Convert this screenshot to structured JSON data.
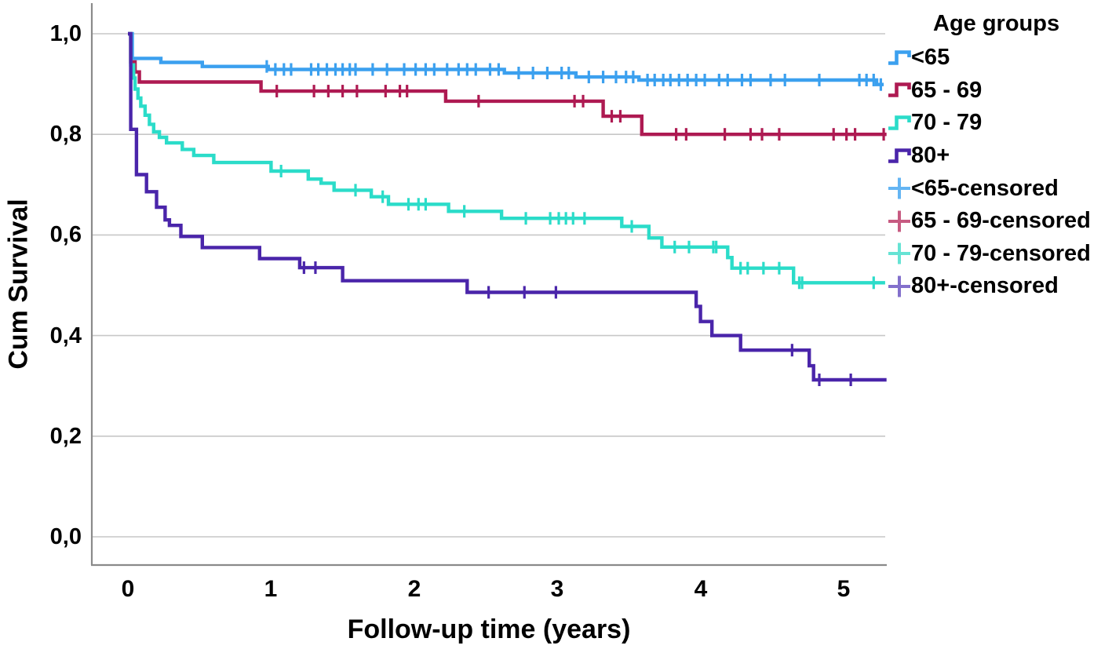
{
  "chart_data": {
    "type": "line",
    "subtype": "kaplan-meier-step",
    "title": "",
    "xlabel": "Follow-up time (years)",
    "ylabel": "Cum Survival",
    "x_axis": {
      "tick_labels": [
        "0",
        "1",
        "2",
        "3",
        "4",
        "5"
      ],
      "tick_values": [
        0,
        1,
        2,
        3,
        4,
        5
      ],
      "range_shown": [
        -0.25,
        5.3
      ]
    },
    "y_axis": {
      "tick_labels": [
        "1,0",
        "0,8",
        "0,6",
        "0,4",
        "0,2",
        "0,0"
      ],
      "tick_values": [
        1.0,
        0.8,
        0.6,
        0.4,
        0.2,
        0.0
      ],
      "range_shown": [
        0.0,
        1.05
      ],
      "decimal_separator": "comma"
    },
    "grid": "horizontal-only",
    "style": {
      "grid_color": "#c7c7c7",
      "axis_color": "#8a8a8a",
      "background": "#ffffff",
      "text_color": "#000000"
    },
    "legend": {
      "title": "Age groups",
      "position": "right",
      "items": [
        {
          "label": "<65",
          "type": "line",
          "color": "#3BA0EF"
        },
        {
          "label": "65 - 69",
          "type": "line",
          "color": "#AE1A52"
        },
        {
          "label": "70 - 79",
          "type": "line",
          "color": "#2BDCC9"
        },
        {
          "label": "80+",
          "type": "line",
          "color": "#4A25AA"
        },
        {
          "label": "<65-censored",
          "type": "censor",
          "color": "#64B5F3"
        },
        {
          "label": "65 - 69-censored",
          "type": "censor",
          "color": "#C75B82"
        },
        {
          "label": "70 - 79-censored",
          "type": "censor",
          "color": "#66E3D4"
        },
        {
          "label": "80+-censored",
          "type": "censor",
          "color": "#8370CC"
        }
      ]
    },
    "series": [
      {
        "id": "lt65",
        "name": "<65",
        "color": "#3BA0EF",
        "steps": [
          [
            0,
            1.0
          ],
          [
            0.03,
            0.951
          ],
          [
            0.23,
            0.943
          ],
          [
            0.52,
            0.935
          ],
          [
            0.98,
            0.929
          ],
          [
            2.63,
            0.922
          ],
          [
            3.13,
            0.914
          ],
          [
            3.57,
            0.908
          ],
          [
            5.23,
            0.899
          ]
        ],
        "end_time": 5.28,
        "censor_times": [
          0.97,
          1.03,
          1.09,
          1.14,
          1.28,
          1.33,
          1.39,
          1.45,
          1.5,
          1.55,
          1.59,
          1.71,
          1.81,
          1.93,
          2.01,
          2.08,
          2.14,
          2.23,
          2.31,
          2.37,
          2.43,
          2.53,
          2.59,
          2.73,
          2.83,
          2.93,
          3.03,
          3.08,
          3.22,
          3.32,
          3.41,
          3.48,
          3.53,
          3.63,
          3.68,
          3.74,
          3.79,
          3.85,
          3.91,
          3.97,
          4.03,
          4.13,
          4.19,
          4.29,
          4.35,
          4.49,
          4.59,
          4.83,
          5.11,
          5.16,
          5.21,
          5.26
        ]
      },
      {
        "id": "65-69",
        "name": "65 - 69",
        "color": "#AE1A52",
        "steps": [
          [
            0,
            1.0
          ],
          [
            0.02,
            0.944
          ],
          [
            0.05,
            0.924
          ],
          [
            0.08,
            0.904
          ],
          [
            0.93,
            0.886
          ],
          [
            2.22,
            0.866
          ],
          [
            3.32,
            0.836
          ],
          [
            3.59,
            0.8
          ]
        ],
        "end_time": 5.3,
        "censor_times": [
          1.04,
          1.3,
          1.4,
          1.5,
          1.6,
          1.8,
          1.9,
          1.95,
          2.45,
          3.12,
          3.18,
          3.38,
          3.44,
          3.83,
          3.9,
          4.17,
          4.35,
          4.43,
          4.55,
          4.93,
          5.02,
          5.08,
          5.28
        ]
      },
      {
        "id": "70-79",
        "name": "70 - 79",
        "color": "#2BDCC9",
        "steps": [
          [
            0,
            1.0
          ],
          [
            0.02,
            0.938
          ],
          [
            0.04,
            0.912
          ],
          [
            0.05,
            0.89
          ],
          [
            0.07,
            0.872
          ],
          [
            0.09,
            0.856
          ],
          [
            0.12,
            0.838
          ],
          [
            0.15,
            0.82
          ],
          [
            0.18,
            0.805
          ],
          [
            0.22,
            0.794
          ],
          [
            0.27,
            0.783
          ],
          [
            0.38,
            0.77
          ],
          [
            0.46,
            0.758
          ],
          [
            0.6,
            0.744
          ],
          [
            1.0,
            0.727
          ],
          [
            1.26,
            0.711
          ],
          [
            1.35,
            0.703
          ],
          [
            1.44,
            0.689
          ],
          [
            1.7,
            0.676
          ],
          [
            1.82,
            0.661
          ],
          [
            2.24,
            0.647
          ],
          [
            2.61,
            0.633
          ],
          [
            3.45,
            0.617
          ],
          [
            3.64,
            0.594
          ],
          [
            3.73,
            0.576
          ],
          [
            4.19,
            0.555
          ],
          [
            4.22,
            0.534
          ],
          [
            4.65,
            0.505
          ]
        ],
        "end_time": 5.29,
        "censor_times": [
          1.07,
          1.59,
          1.78,
          1.96,
          2.03,
          2.08,
          2.35,
          2.78,
          2.95,
          3.01,
          3.06,
          3.11,
          3.19,
          3.52,
          3.82,
          3.92,
          4.09,
          4.11,
          4.28,
          4.33,
          4.44,
          4.55,
          4.69,
          4.71,
          5.21
        ]
      },
      {
        "id": "80plus",
        "name": "80+",
        "color": "#4A25AA",
        "steps": [
          [
            0,
            1.0
          ],
          [
            0.02,
            0.81
          ],
          [
            0.06,
            0.72
          ],
          [
            0.13,
            0.686
          ],
          [
            0.2,
            0.655
          ],
          [
            0.26,
            0.63
          ],
          [
            0.29,
            0.619
          ],
          [
            0.37,
            0.597
          ],
          [
            0.52,
            0.575
          ],
          [
            0.92,
            0.553
          ],
          [
            1.2,
            0.535
          ],
          [
            1.5,
            0.509
          ],
          [
            2.37,
            0.486
          ],
          [
            3.97,
            0.458
          ],
          [
            4.0,
            0.428
          ],
          [
            4.08,
            0.4
          ],
          [
            4.28,
            0.371
          ],
          [
            4.76,
            0.34
          ],
          [
            4.79,
            0.312
          ]
        ],
        "end_time": 5.3,
        "censor_times": [
          1.23,
          1.31,
          2.52,
          2.77,
          2.99,
          4.64,
          4.83,
          5.05
        ]
      }
    ]
  }
}
